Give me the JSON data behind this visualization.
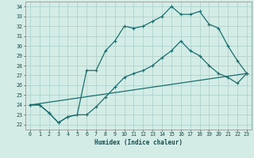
{
  "xlabel": "Humidex (Indice chaleur)",
  "bg_color": "#d4ece6",
  "grid_color": "#aacfc8",
  "line_color": "#1a6e6e",
  "xlim": [
    -0.5,
    23.5
  ],
  "ylim": [
    21.5,
    34.5
  ],
  "yticks": [
    22,
    23,
    24,
    25,
    26,
    27,
    28,
    29,
    30,
    31,
    32,
    33,
    34
  ],
  "xticks": [
    0,
    1,
    2,
    3,
    4,
    5,
    6,
    7,
    8,
    9,
    10,
    11,
    12,
    13,
    14,
    15,
    16,
    17,
    18,
    19,
    20,
    21,
    22,
    23
  ],
  "line1_x": [
    0,
    1,
    2,
    3,
    4,
    5,
    6,
    7,
    8,
    9,
    10,
    11,
    12,
    13,
    14,
    15,
    16,
    17,
    18,
    19,
    20,
    21,
    22,
    23
  ],
  "line1_y": [
    24.0,
    24.0,
    23.2,
    22.2,
    22.8,
    23.0,
    27.5,
    27.5,
    29.5,
    30.5,
    32.0,
    31.8,
    32.0,
    32.5,
    33.0,
    34.0,
    33.2,
    33.2,
    33.5,
    32.2,
    31.8,
    30.0,
    28.5,
    27.2
  ],
  "line2_x": [
    0,
    23
  ],
  "line2_y": [
    24.0,
    27.2
  ],
  "line3_x": [
    0,
    1,
    2,
    3,
    4,
    5,
    6,
    7,
    8,
    9,
    10,
    11,
    12,
    13,
    14,
    15,
    16,
    17,
    18,
    19,
    20,
    21,
    22,
    23
  ],
  "line3_y": [
    24.0,
    24.0,
    23.2,
    22.2,
    22.8,
    23.0,
    23.0,
    23.8,
    24.8,
    25.8,
    26.8,
    27.2,
    27.5,
    28.0,
    28.8,
    29.5,
    30.5,
    29.5,
    29.0,
    28.0,
    27.2,
    26.8,
    26.2,
    27.2
  ]
}
